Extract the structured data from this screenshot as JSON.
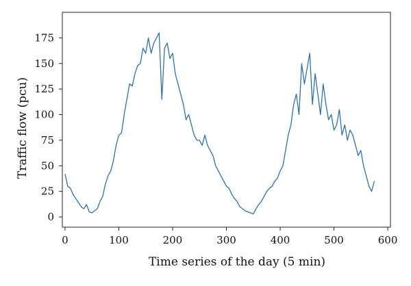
{
  "chart_data": {
    "type": "line",
    "title": "",
    "xlabel": "Time series of the day (5 min)",
    "ylabel": "Traffic flow (pcu)",
    "xlim": [
      -5,
      605
    ],
    "ylim": [
      -10,
      200
    ],
    "xticks": [
      0,
      100,
      200,
      300,
      400,
      500,
      600
    ],
    "yticks": [
      0,
      25,
      50,
      75,
      100,
      125,
      150,
      175
    ],
    "grid": false,
    "legend": "none",
    "colors": {
      "line": "#2f6fad",
      "axis": "#222222"
    },
    "series": [
      {
        "x": [
          0,
          5,
          10,
          15,
          20,
          25,
          30,
          35,
          40,
          45,
          50,
          55,
          60,
          65,
          70,
          75,
          80,
          85,
          90,
          95,
          100,
          105,
          110,
          115,
          120,
          125,
          130,
          135,
          140,
          145,
          150,
          155,
          160,
          165,
          170,
          175,
          180,
          185,
          190,
          195,
          200,
          205,
          210,
          215,
          220,
          225,
          230,
          235,
          240,
          245,
          250,
          255,
          260,
          265,
          270,
          275,
          280,
          285,
          290,
          295,
          300,
          305,
          310,
          315,
          320,
          325,
          330,
          335,
          340,
          345,
          350,
          355,
          360,
          365,
          370,
          375,
          380,
          385,
          390,
          395,
          400,
          405,
          410,
          415,
          420,
          425,
          430,
          435,
          440,
          445,
          450,
          455,
          460,
          465,
          470,
          475,
          480,
          485,
          490,
          495,
          500,
          505,
          510,
          515,
          520,
          525,
          530,
          535,
          540,
          545,
          550,
          555,
          560,
          565,
          570,
          575
        ],
        "values": [
          42,
          30,
          28,
          22,
          18,
          14,
          10,
          8,
          12,
          5,
          4,
          6,
          8,
          15,
          20,
          32,
          40,
          45,
          55,
          70,
          80,
          82,
          100,
          115,
          130,
          128,
          140,
          148,
          150,
          165,
          160,
          175,
          160,
          170,
          175,
          180,
          115,
          165,
          170,
          155,
          160,
          140,
          130,
          120,
          110,
          95,
          100,
          90,
          80,
          75,
          75,
          70,
          80,
          70,
          65,
          60,
          50,
          45,
          40,
          35,
          30,
          28,
          22,
          18,
          15,
          10,
          8,
          6,
          5,
          4,
          3,
          8,
          12,
          15,
          20,
          25,
          28,
          30,
          35,
          38,
          45,
          50,
          65,
          80,
          90,
          110,
          120,
          100,
          150,
          130,
          145,
          160,
          110,
          140,
          120,
          100,
          130,
          110,
          95,
          100,
          85,
          90,
          105,
          80,
          90,
          75,
          85,
          80,
          70,
          60,
          65,
          50,
          40,
          30,
          25,
          35
        ]
      }
    ]
  }
}
